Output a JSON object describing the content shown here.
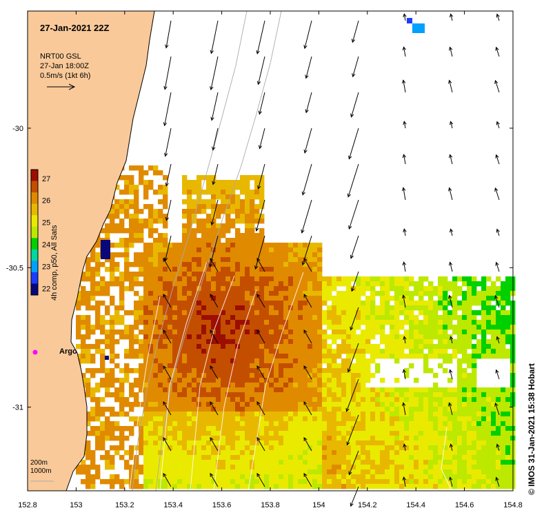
{
  "map": {
    "date_title": "27-Jan-2021 22Z",
    "wind_source": "NRT00 GSL",
    "wind_time": "27-Jan 18:00Z",
    "vector_scale": "0.5m/s (1kt 6h)",
    "contour_legend": [
      "200m",
      "1000m"
    ],
    "credit": "© IMOS 31-Jan-2021 15:38 Hobart",
    "argo_label": "Argo",
    "x_ticks": [
      "152.8",
      "153",
      "153.2",
      "153.4",
      "153.6",
      "153.8",
      "154",
      "154.2",
      "154.4",
      "154.6",
      "154.8"
    ],
    "y_ticks": [
      "-30",
      "-30.5",
      "-31"
    ],
    "x_range": [
      152.8,
      154.8
    ],
    "y_range": [
      -31.3,
      -29.58
    ],
    "land_color": "#f9c99a",
    "argo_color": "#ff00ff"
  },
  "colorbar": {
    "title": "4h comp, p50, All Sats",
    "ticks": [
      "27",
      "26",
      "25",
      "24",
      "23",
      "22"
    ],
    "range": [
      21.7,
      27.4
    ],
    "colors": [
      "#08087a",
      "#1a3cff",
      "#00a0ff",
      "#00d8a0",
      "#00d000",
      "#bde800",
      "#eaea00",
      "#e8b800",
      "#e08a00",
      "#c44e00",
      "#9c0e00"
    ]
  }
}
